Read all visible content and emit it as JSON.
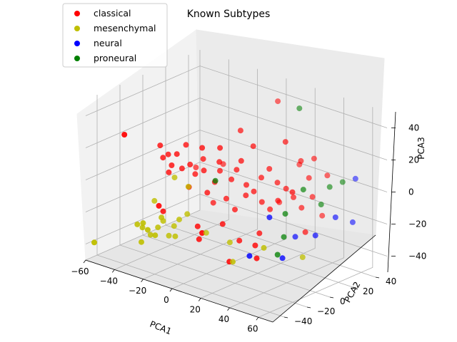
{
  "chart_data": {
    "type": "scatter",
    "title": "Known Subtypes",
    "xlabel": "PCA1",
    "ylabel": "PCA2",
    "zlabel": "PCA3",
    "x_ticks": [
      "−60",
      "−40",
      "−20",
      "0",
      "20",
      "40",
      "60"
    ],
    "y_ticks": [
      "−40",
      "−20",
      "0",
      "20",
      "40"
    ],
    "z_ticks": [
      "−40",
      "−20",
      "0",
      "20",
      "40"
    ],
    "xlim": [
      -60,
      70
    ],
    "ylim": [
      -50,
      50
    ],
    "zlim": [
      -50,
      50
    ],
    "legend_position": "top-left",
    "grid": true,
    "series": [
      {
        "name": "classical",
        "color": "#ff0000",
        "points": [
          [
            -40,
            -10,
            15
          ],
          [
            -38,
            -10,
            8
          ],
          [
            -36,
            -8,
            10
          ],
          [
            -34,
            -10,
            0
          ],
          [
            -32,
            -10,
            5
          ],
          [
            -30,
            -8,
            12
          ],
          [
            -28,
            -6,
            3
          ],
          [
            -26,
            -5,
            18
          ],
          [
            -24,
            -4,
            6
          ],
          [
            -22,
            -2,
            0
          ],
          [
            -20,
            -10,
            -5
          ],
          [
            -18,
            0,
            10
          ],
          [
            -16,
            -2,
            4
          ],
          [
            -14,
            -6,
            20
          ],
          [
            -12,
            -4,
            -8
          ],
          [
            -10,
            0,
            -2
          ],
          [
            -8,
            2,
            5
          ],
          [
            -6,
            -1,
            12
          ],
          [
            -4,
            -3,
            22
          ],
          [
            -2,
            0,
            -10
          ],
          [
            0,
            2,
            2
          ],
          [
            2,
            4,
            8
          ],
          [
            4,
            0,
            -15
          ],
          [
            6,
            3,
            15
          ],
          [
            8,
            5,
            0
          ],
          [
            10,
            2,
            -5
          ],
          [
            12,
            6,
            25
          ],
          [
            14,
            4,
            -2
          ],
          [
            16,
            8,
            6
          ],
          [
            18,
            6,
            -8
          ],
          [
            20,
            10,
            12
          ],
          [
            22,
            8,
            -12
          ],
          [
            24,
            12,
            4
          ],
          [
            26,
            10,
            -6
          ],
          [
            28,
            14,
            30
          ],
          [
            30,
            12,
            2
          ],
          [
            32,
            16,
            -4
          ],
          [
            34,
            20,
            18
          ],
          [
            36,
            18,
            -10
          ],
          [
            38,
            22,
            8
          ],
          [
            40,
            24,
            20
          ],
          [
            42,
            20,
            -2
          ],
          [
            44,
            26,
            -15
          ],
          [
            46,
            28,
            10
          ],
          [
            -30,
            -20,
            -20
          ],
          [
            -10,
            -15,
            -25
          ],
          [
            5,
            -12,
            -20
          ],
          [
            15,
            -10,
            -28
          ],
          [
            25,
            -5,
            -22
          ],
          [
            35,
            -20,
            -30
          ],
          [
            20,
            -25,
            -35
          ],
          [
            -5,
            -20,
            -30
          ],
          [
            -25,
            -30,
            -12
          ],
          [
            10,
            30,
            45
          ],
          [
            -45,
            -35,
            28
          ],
          [
            0,
            10,
            30
          ],
          [
            -15,
            5,
            -18
          ],
          [
            30,
            -15,
            -25
          ],
          [
            45,
            10,
            -20
          ],
          [
            -35,
            15,
            -5
          ],
          [
            15,
            25,
            -15
          ],
          [
            25,
            30,
            10
          ],
          [
            5,
            -30,
            -20
          ],
          [
            -20,
            20,
            0
          ],
          [
            40,
            5,
            5
          ]
        ]
      },
      {
        "name": "mesenchymal",
        "color": "#bfbf00",
        "points": [
          [
            -58,
            -45,
            -40
          ],
          [
            -40,
            -30,
            -28
          ],
          [
            -38,
            -28,
            -30
          ],
          [
            -36,
            -30,
            -26
          ],
          [
            -34,
            -26,
            -34
          ],
          [
            -32,
            -22,
            -30
          ],
          [
            -30,
            -20,
            -26
          ],
          [
            -28,
            -24,
            -22
          ],
          [
            -26,
            -20,
            -34
          ],
          [
            -24,
            -18,
            -28
          ],
          [
            -22,
            -16,
            -24
          ],
          [
            -20,
            -22,
            -32
          ],
          [
            -30,
            -10,
            -2
          ],
          [
            -18,
            -14,
            -20
          ],
          [
            -40,
            -15,
            -18
          ],
          [
            -8,
            -10,
            -30
          ],
          [
            10,
            -12,
            -30
          ],
          [
            20,
            -22,
            -36
          ],
          [
            40,
            -20,
            -22
          ],
          [
            55,
            -5,
            -28
          ],
          [
            -34,
            -34,
            -36
          ],
          [
            -28,
            -36,
            -26
          ],
          [
            -22,
            -8,
            -6
          ],
          [
            -26,
            -32,
            -30
          ]
        ]
      },
      {
        "name": "neural",
        "color": "#0000ff",
        "points": [
          [
            30,
            -20,
            -30
          ],
          [
            32,
            -5,
            -10
          ],
          [
            45,
            -10,
            -30
          ],
          [
            52,
            10,
            -20
          ],
          [
            58,
            20,
            -10
          ],
          [
            62,
            30,
            -15
          ],
          [
            60,
            35,
            10
          ],
          [
            38,
            10,
            -25
          ]
        ]
      },
      {
        "name": "proneural",
        "color": "#007f00",
        "points": [
          [
            25,
            30,
            45
          ],
          [
            -8,
            -2,
            0
          ],
          [
            35,
            5,
            -10
          ],
          [
            42,
            12,
            5
          ],
          [
            48,
            20,
            -5
          ],
          [
            40,
            -8,
            -30
          ],
          [
            50,
            25,
            5
          ],
          [
            55,
            30,
            8
          ],
          [
            38,
            0,
            -22
          ]
        ]
      }
    ]
  }
}
